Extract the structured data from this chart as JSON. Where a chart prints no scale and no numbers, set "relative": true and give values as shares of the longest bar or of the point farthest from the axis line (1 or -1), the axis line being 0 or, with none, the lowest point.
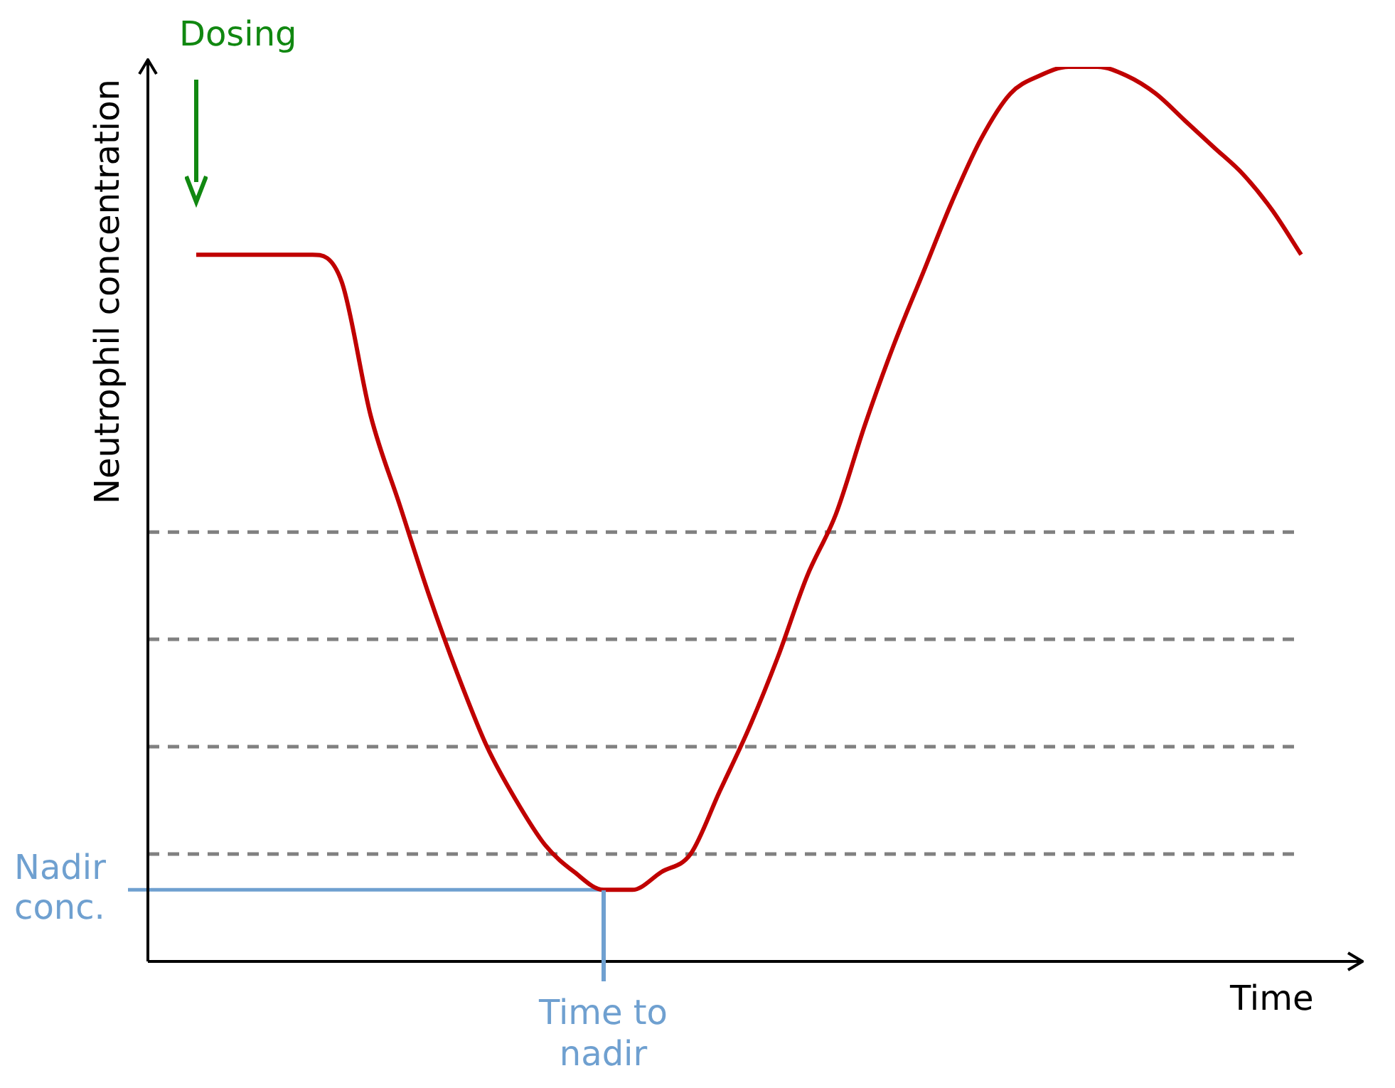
{
  "chart_data": {
    "type": "line",
    "relative": true,
    "xlabel": "Time",
    "ylabel": "Neutrophil concentration",
    "categories": [
      null,
      null,
      null,
      null,
      null,
      null,
      null,
      null,
      null,
      null,
      null,
      null,
      null,
      null,
      null,
      null,
      null,
      null,
      null,
      null,
      null,
      null,
      null,
      null,
      null,
      null,
      null,
      null,
      null,
      null,
      null,
      null,
      null,
      null,
      null,
      null,
      null,
      null,
      null
    ],
    "series": [
      {
        "color": "#c00000",
        "values": [
          0.79,
          0.79,
          0.79,
          0.79,
          0.79,
          0.76,
          0.61,
          0.51,
          0.41,
          0.32,
          0.24,
          0.18,
          0.13,
          0.1,
          0.08,
          0.08,
          0.1,
          0.12,
          0.19,
          0.26,
          0.34,
          0.43,
          0.5,
          0.6,
          0.69,
          0.77,
          0.85,
          0.92,
          0.97,
          0.99,
          1.0,
          1.0,
          0.99,
          0.97,
          0.94,
          0.91,
          0.88,
          0.84,
          0.79
        ]
      }
    ],
    "ref_lines": [
      {
        "axis": "y",
        "value": 0.48,
        "color": "#808080",
        "line_style": "dashed"
      },
      {
        "axis": "y",
        "value": 0.36,
        "color": "#808080",
        "line_style": "dashed"
      },
      {
        "axis": "y",
        "value": 0.24,
        "color": "#808080",
        "line_style": "dashed"
      },
      {
        "axis": "y",
        "value": 0.12,
        "color": "#808080",
        "line_style": "dashed"
      },
      {
        "axis": "y",
        "value": 0.08,
        "label": "Nadir conc.",
        "color": "#6fa0d0",
        "line_style": "solid"
      }
    ],
    "annotations": [
      "Dosing",
      "Time to nadir"
    ],
    "legend": false,
    "marker": "none",
    "line_style": "solid"
  }
}
